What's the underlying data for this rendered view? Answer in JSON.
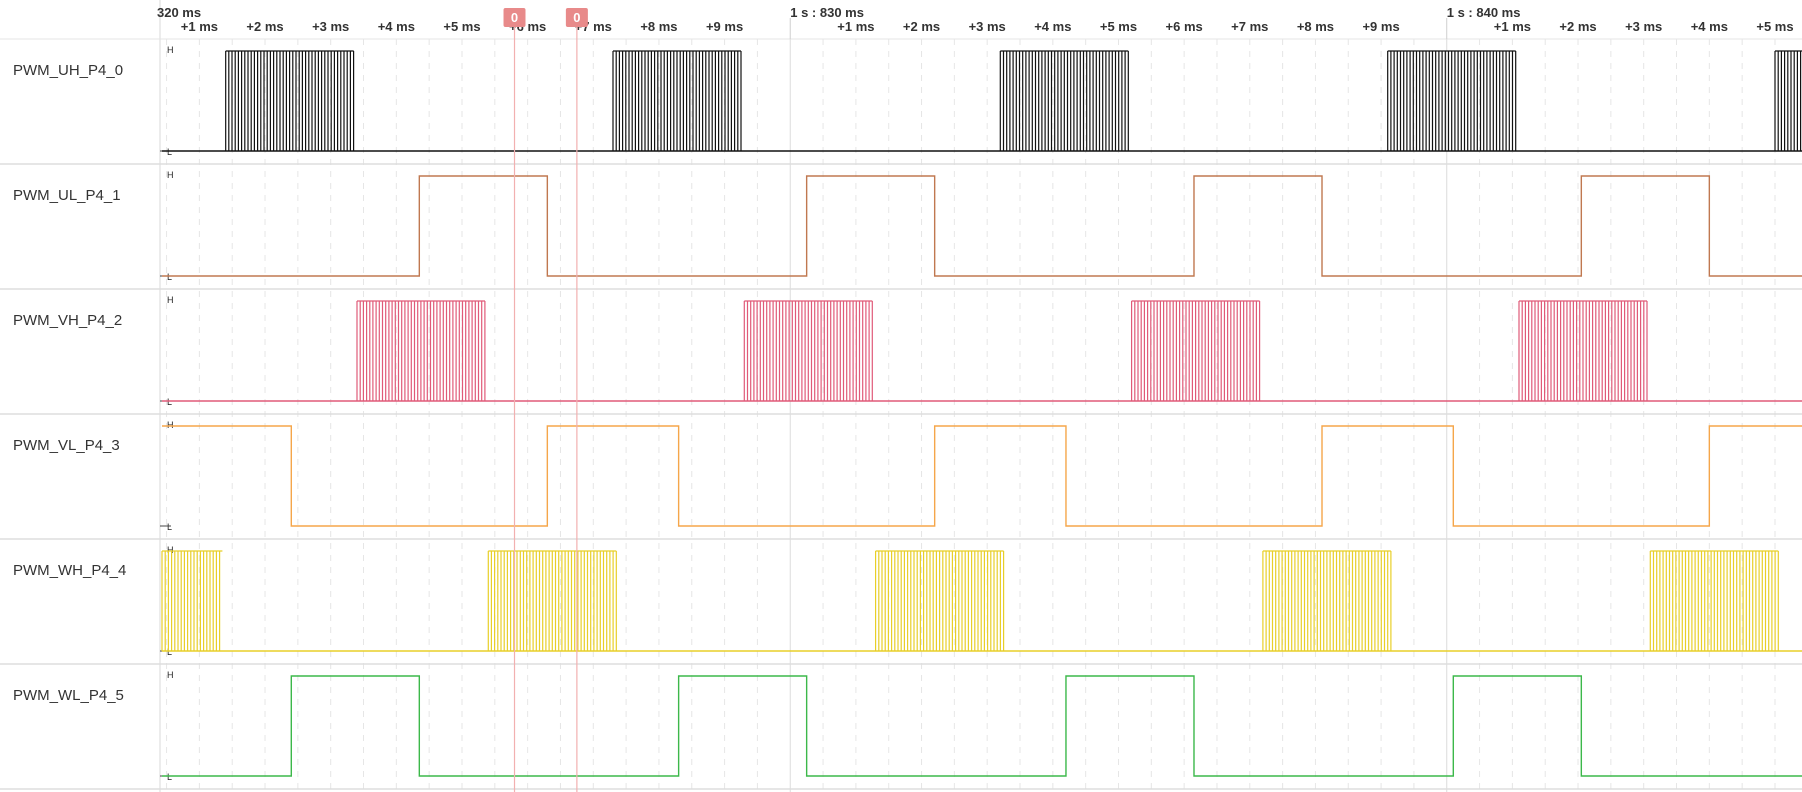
{
  "time_ruler": {
    "origin_labels": [
      "320 ms",
      "1 s : 830 ms",
      "1 s : 840 ms"
    ],
    "tick_labels": [
      "+1 ms",
      "+2 ms",
      "+3 ms",
      "+4 ms",
      "+5 ms",
      "+6 ms",
      "+7 ms",
      "+8 ms",
      "+9 ms",
      "+1 ms",
      "+2 ms",
      "+3 ms",
      "+4 ms",
      "+5 ms",
      "+6 ms",
      "+7 ms",
      "+8 ms",
      "+9 ms",
      "+1 ms",
      "+2 ms",
      "+3 ms",
      "+4 ms",
      "+5 ms"
    ]
  },
  "markers": [
    {
      "label": "0",
      "time_ms": 825.8
    },
    {
      "label": "0",
      "time_ms": 826.75
    }
  ],
  "level_labels": {
    "high": "H",
    "low": "L"
  },
  "chart_data": {
    "type": "line",
    "x_unit": "ms",
    "x_range": [
      820.4,
      845.55
    ],
    "period_ms": 11.8,
    "channels": [
      {
        "name": "PWM_UH_P4_0",
        "kind": "burst",
        "color": "#111111",
        "bursts_ms": [
          [
            821.4,
            823.35
          ],
          [
            827.3,
            829.25
          ],
          [
            833.2,
            835.15
          ],
          [
            839.1,
            841.05
          ],
          [
            845.0,
            845.55
          ]
        ]
      },
      {
        "name": "PWM_UL_P4_1",
        "kind": "step",
        "color": "#c07850",
        "initial": 0,
        "transitions_ms": [
          824.35,
          826.3,
          830.25,
          832.2,
          836.15,
          838.1,
          842.05,
          844.0
        ]
      },
      {
        "name": "PWM_VH_P4_2",
        "kind": "burst",
        "color": "#e05a78",
        "bursts_ms": [
          [
            823.4,
            825.35
          ],
          [
            829.3,
            831.25
          ],
          [
            835.2,
            837.15
          ],
          [
            841.1,
            843.05
          ]
        ]
      },
      {
        "name": "PWM_VL_P4_3",
        "kind": "step",
        "color": "#f5a64a",
        "initial": 1,
        "transitions_ms": [
          822.4,
          826.3,
          828.3,
          832.2,
          834.2,
          838.1,
          840.1,
          844.0
        ]
      },
      {
        "name": "PWM_WH_P4_4",
        "kind": "burst",
        "color": "#e8cf28",
        "bursts_ms": [
          [
            820.4,
            821.35
          ],
          [
            825.4,
            827.35
          ],
          [
            831.3,
            833.25
          ],
          [
            837.2,
            839.15
          ],
          [
            843.1,
            845.05
          ]
        ]
      },
      {
        "name": "PWM_WL_P4_5",
        "kind": "step",
        "color": "#3cb84a",
        "initial": 0,
        "transitions_ms": [
          822.4,
          824.35,
          828.3,
          830.25,
          834.2,
          836.15,
          840.1,
          842.05
        ]
      }
    ]
  }
}
